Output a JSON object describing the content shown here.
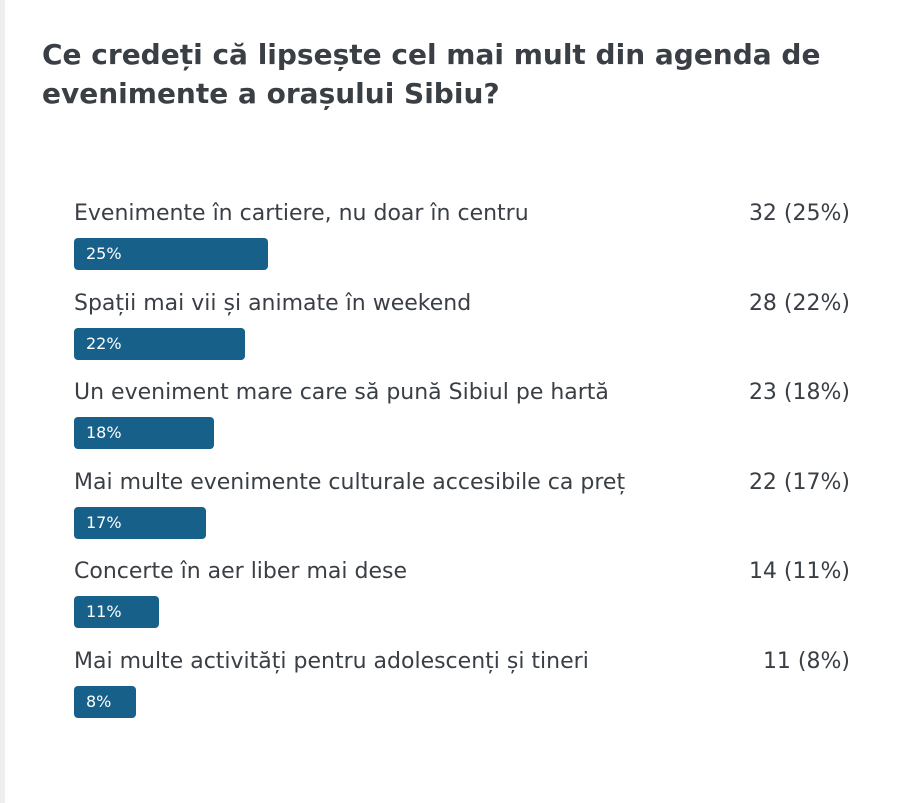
{
  "poll": {
    "title": "Ce credeți că lipsește cel mai mult din agenda de evenimente a orașului Sibiu?",
    "bar_color": "#17608a",
    "text_color": "#3a3f45"
  },
  "chart_data": {
    "type": "bar",
    "orientation": "horizontal",
    "title": "Ce credeți că lipsește cel mai mult din agenda de evenimente a orașului Sibiu?",
    "categories": [
      "Evenimente în cartiere, nu doar în centru",
      "Spații mai vii și animate în weekend",
      "Un eveniment mare care să pună Sibiul pe hartă",
      "Mai multe evenimente culturale accesibile ca preț",
      "Concerte în aer liber mai dese",
      "Mai multe activități pentru adolescenți și tineri"
    ],
    "values": [
      32,
      28,
      23,
      22,
      14,
      11
    ],
    "percents": [
      25,
      22,
      18,
      17,
      11,
      8
    ],
    "count_labels": [
      "32 (25%)",
      "28 (22%)",
      "23 (18%)",
      "22 (17%)",
      "14 (11%)",
      "11 (8%)"
    ],
    "bar_labels": [
      "25%",
      "22%",
      "18%",
      "17%",
      "11%",
      "8%"
    ],
    "xlim": [
      0,
      100
    ],
    "grid": false,
    "legend": "none"
  }
}
